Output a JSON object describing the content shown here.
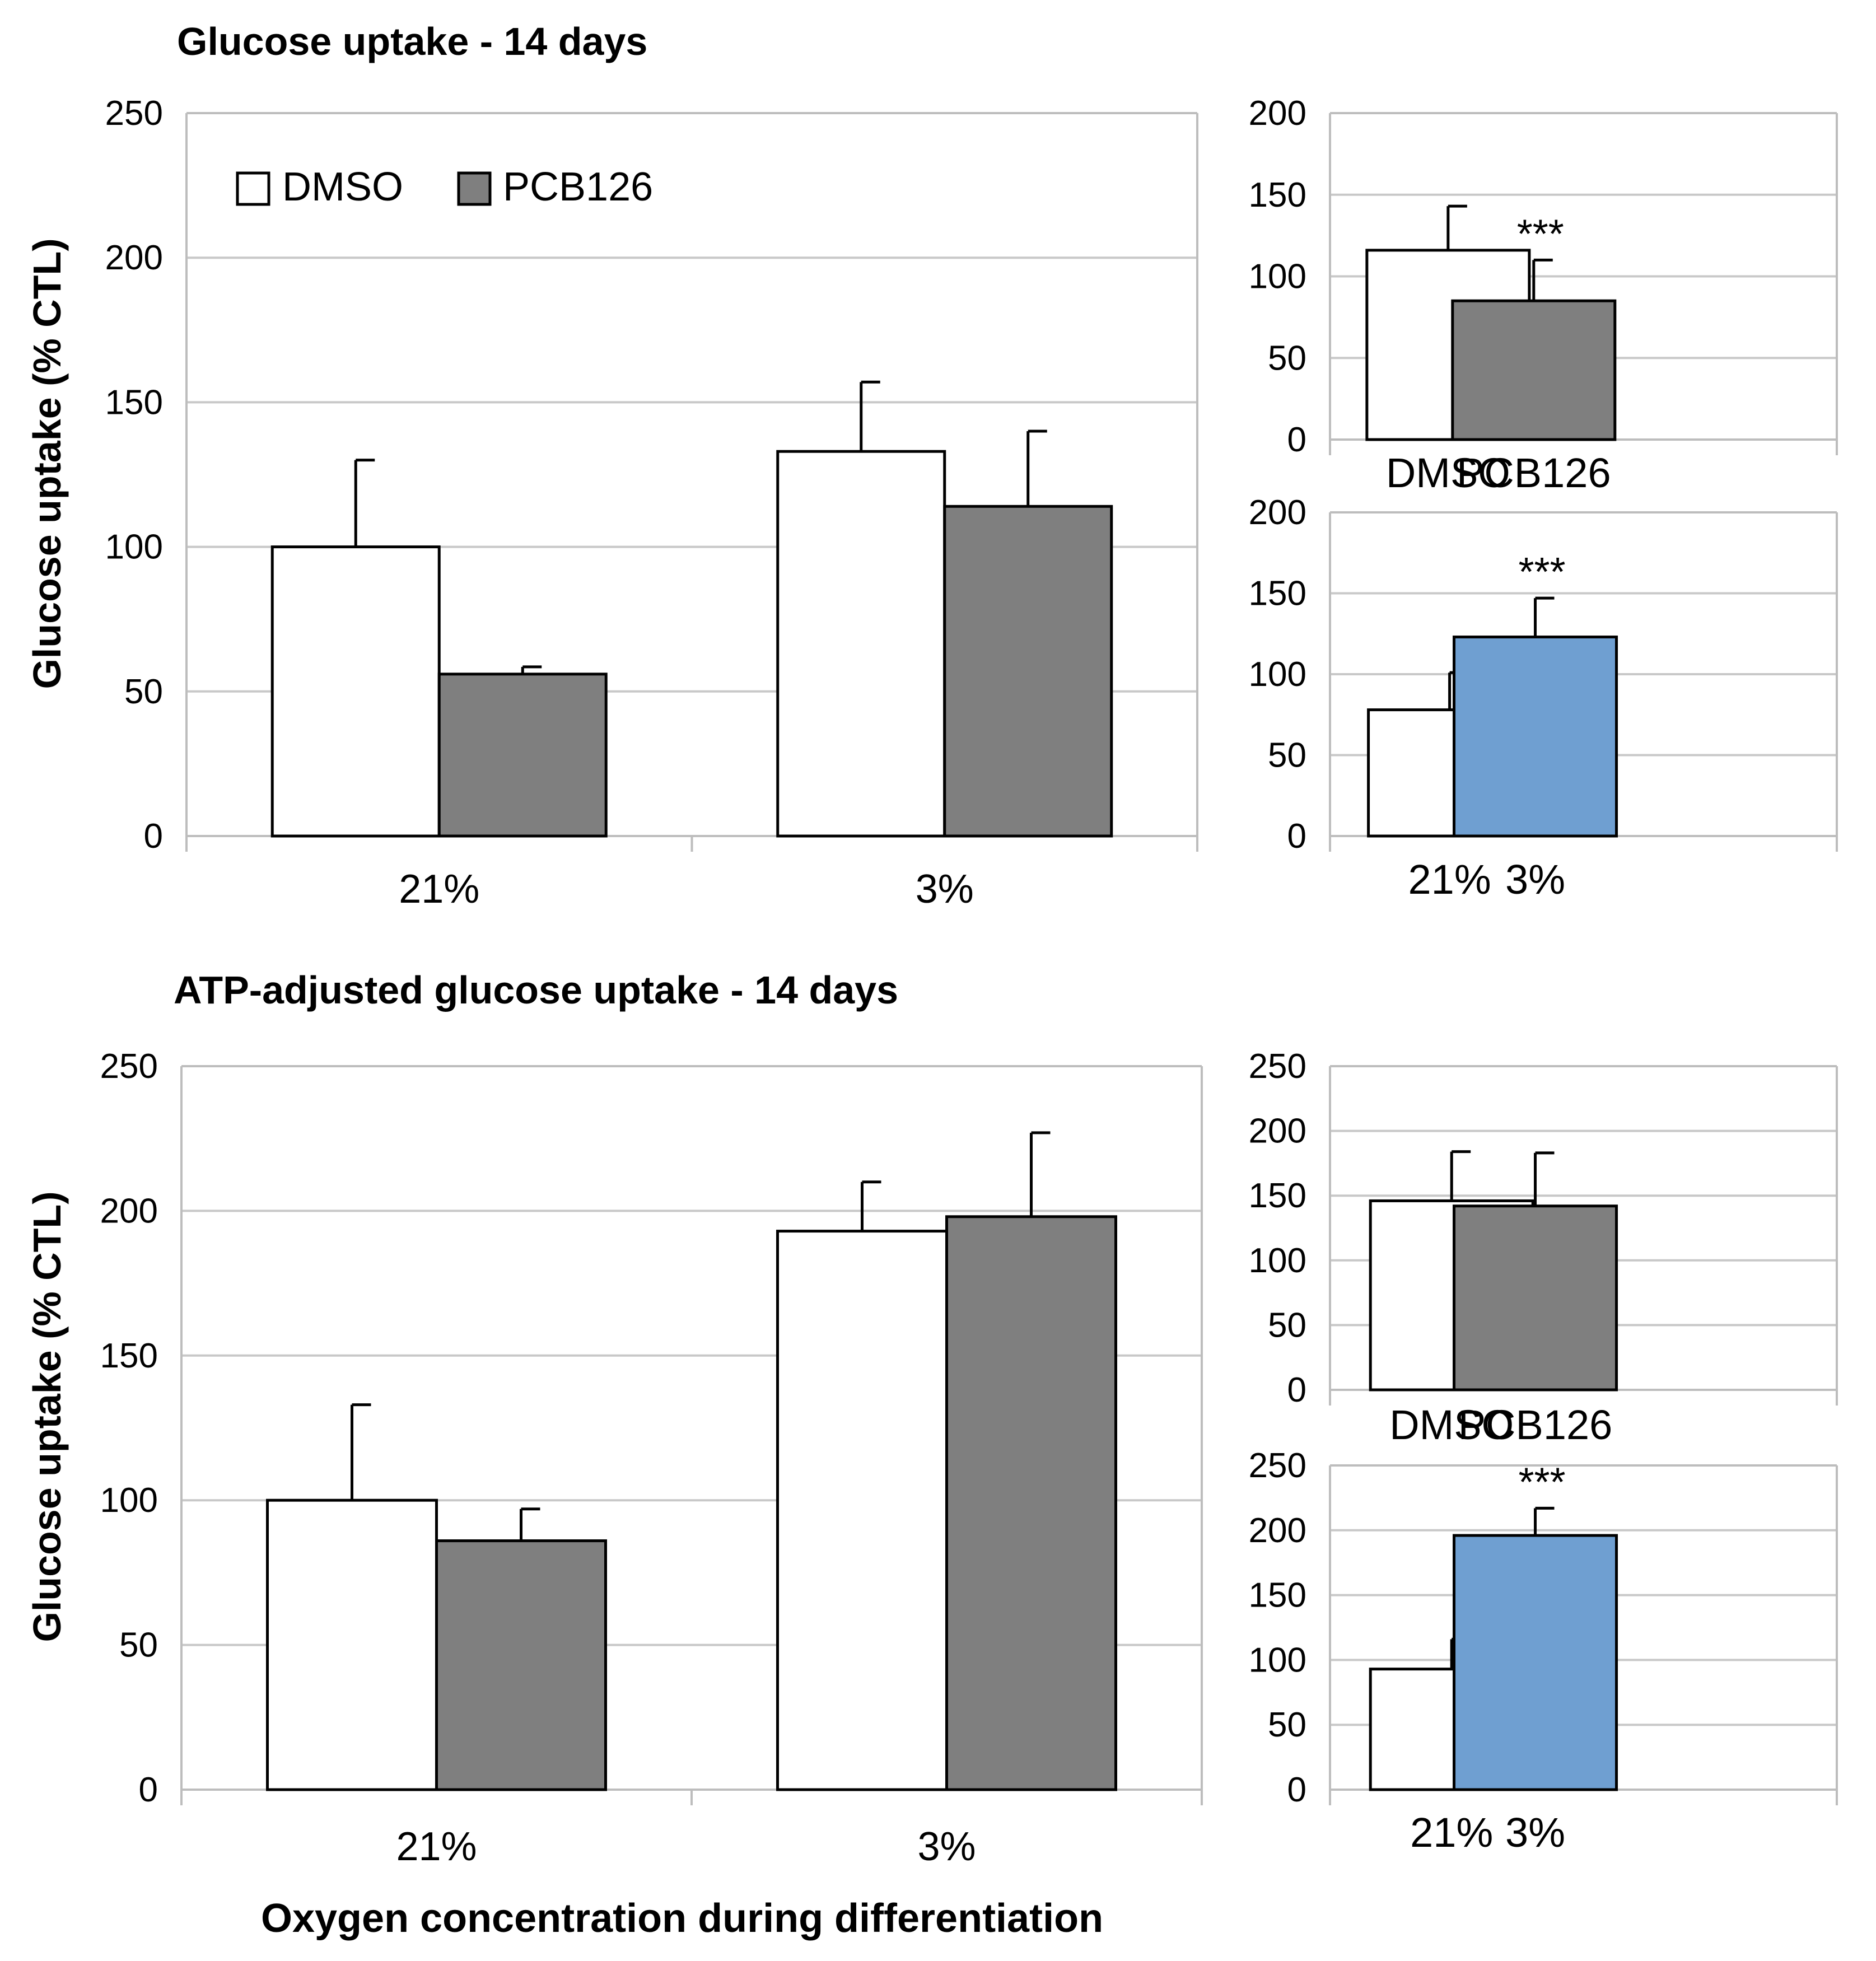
{
  "figure": {
    "sections": [
      {
        "title": "Glucose uptake - 14 days"
      },
      {
        "title": "ATP-adjusted glucose uptake - 14 days"
      }
    ],
    "legend": {
      "dmso": "DMSO",
      "pcb126": "PCB126"
    },
    "y_axis_label": "Glucose uptake (% CTL)",
    "x_axis_label": "Oxygen concentration during differentiation"
  },
  "colors": {
    "dmso": "#ffffff",
    "pcb": "#7f7f7f",
    "blue": "#6f9fd1",
    "grid": "#c8c8c8",
    "axis": "#bdbdbd",
    "border": "#000000"
  },
  "chart_data": [
    {
      "id": "A-main",
      "type": "bar",
      "title": "Glucose uptake - 14 days",
      "ylabel": "Glucose uptake (% CTL)",
      "categories": [
        "21%",
        "3%"
      ],
      "ylim": [
        0,
        250
      ],
      "ticks": [
        0,
        50,
        100,
        150,
        200,
        250
      ],
      "series": [
        {
          "name": "DMSO",
          "color": "#ffffff",
          "values": [
            100,
            133
          ],
          "errors": [
            30,
            24
          ]
        },
        {
          "name": "PCB126",
          "color": "#7f7f7f",
          "values": [
            56,
            114
          ],
          "errors": [
            2.5,
            26
          ]
        }
      ],
      "annotations": []
    },
    {
      "id": "A-inset-treatment",
      "type": "bar",
      "categories": [
        "DMSO",
        "PCB126"
      ],
      "ylim": [
        0,
        200
      ],
      "ticks": [
        0,
        50,
        100,
        150,
        200
      ],
      "values": [
        116,
        85
      ],
      "errors": [
        27,
        25
      ],
      "colors": [
        "#ffffff",
        "#7f7f7f"
      ],
      "annotations": [
        "",
        "***"
      ]
    },
    {
      "id": "A-inset-oxygen",
      "type": "bar",
      "categories": [
        "21%",
        "3%"
      ],
      "ylim": [
        0,
        200
      ],
      "ticks": [
        0,
        50,
        100,
        150,
        200
      ],
      "values": [
        78,
        123
      ],
      "errors": [
        23,
        24
      ],
      "colors": [
        "#ffffff",
        "#6f9fd1"
      ],
      "annotations": [
        "",
        "***"
      ]
    },
    {
      "id": "B-main",
      "type": "bar",
      "title": "ATP-adjusted glucose uptake - 14 days",
      "ylabel": "Glucose uptake (% CTL)",
      "xlabel": "Oxygen concentration during differentiation",
      "categories": [
        "21%",
        "3%"
      ],
      "ylim": [
        0,
        250
      ],
      "ticks": [
        0,
        50,
        100,
        150,
        200,
        250
      ],
      "series": [
        {
          "name": "DMSO",
          "color": "#ffffff",
          "values": [
            100,
            193
          ],
          "errors": [
            33,
            17
          ]
        },
        {
          "name": "PCB126",
          "color": "#7f7f7f",
          "values": [
            86,
            198
          ],
          "errors": [
            11,
            29
          ]
        }
      ],
      "annotations": []
    },
    {
      "id": "B-inset-treatment",
      "type": "bar",
      "categories": [
        "DMSO",
        "PCB126"
      ],
      "ylim": [
        0,
        250
      ],
      "ticks": [
        0,
        50,
        100,
        150,
        200,
        250
      ],
      "values": [
        146,
        142
      ],
      "errors": [
        38,
        41
      ],
      "colors": [
        "#ffffff",
        "#7f7f7f"
      ],
      "annotations": [
        "",
        ""
      ]
    },
    {
      "id": "B-inset-oxygen",
      "type": "bar",
      "categories": [
        "21%",
        "3%"
      ],
      "ylim": [
        0,
        250
      ],
      "ticks": [
        0,
        50,
        100,
        150,
        200,
        250
      ],
      "values": [
        93,
        196
      ],
      "errors": [
        23,
        21
      ],
      "colors": [
        "#ffffff",
        "#6f9fd1"
      ],
      "annotations": [
        "",
        "***"
      ]
    }
  ]
}
